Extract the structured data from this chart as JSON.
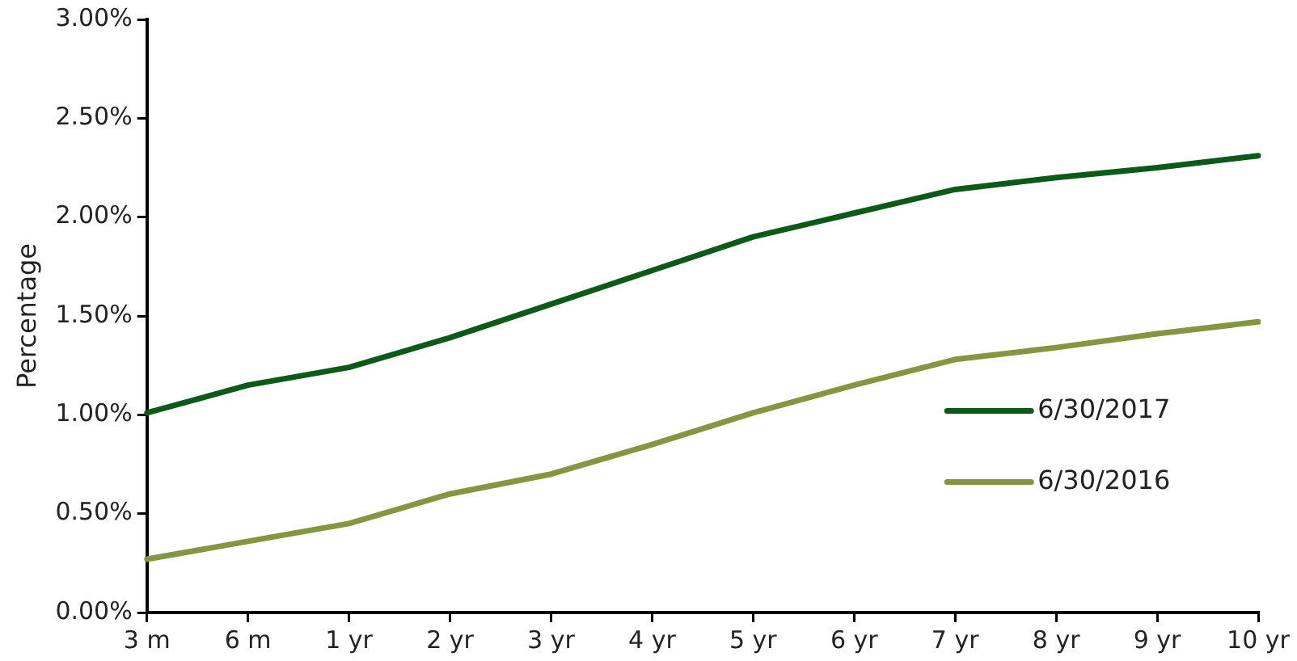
{
  "chart_data": {
    "type": "line",
    "ylabel": "Percentage",
    "categories": [
      "3 m",
      "6 m",
      "1 yr",
      "2 yr",
      "3 yr",
      "4 yr",
      "5 yr",
      "6 yr",
      "7 yr",
      "8 yr",
      "9 yr",
      "10 yr"
    ],
    "series": [
      {
        "name": "6/30/2017",
        "color": "#0b5a17",
        "values": [
          1.01,
          1.15,
          1.24,
          1.39,
          1.56,
          1.73,
          1.9,
          2.02,
          2.14,
          2.2,
          2.25,
          2.31
        ]
      },
      {
        "name": "6/30/2016",
        "color": "#84963f",
        "values": [
          0.27,
          0.36,
          0.45,
          0.6,
          0.7,
          0.85,
          1.01,
          1.15,
          1.28,
          1.34,
          1.41,
          1.47
        ]
      }
    ],
    "ylim": [
      0,
      3
    ],
    "yticks": [
      {
        "value": 0,
        "label": "0.00%"
      },
      {
        "value": 0.5,
        "label": "0.50%"
      },
      {
        "value": 1,
        "label": "1.00%"
      },
      {
        "value": 1.5,
        "label": "1.50%"
      },
      {
        "value": 2,
        "label": "2.00%"
      },
      {
        "value": 2.5,
        "label": "2.50%"
      },
      {
        "value": 3,
        "label": "3.00%"
      }
    ],
    "grid": false,
    "legend": "right",
    "marker": "none",
    "line_style": "solid"
  }
}
